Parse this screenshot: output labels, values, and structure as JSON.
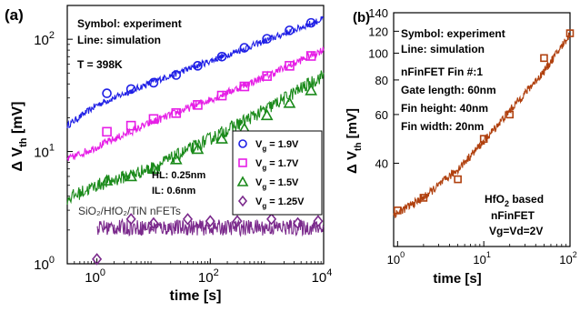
{
  "chart_data": [
    {
      "panel_label": "(a)",
      "type": "scatter",
      "xscale": "log",
      "yscale": "log",
      "xlim": [
        0.3,
        10000
      ],
      "ylim": [
        1,
        200
      ],
      "xlabel": "time [s]",
      "ylabel_main": "Δ V",
      "ylabel_sub": "th",
      "ylabel_unit": " [mV]",
      "xticks": [
        {
          "v": 1,
          "base": "10",
          "exp": "0"
        },
        {
          "v": 100,
          "base": "10",
          "exp": "2"
        },
        {
          "v": 10000,
          "base": "10",
          "exp": "4"
        }
      ],
      "yticks": [
        {
          "v": 1,
          "base": "10",
          "exp": "0"
        },
        {
          "v": 10,
          "base": "10",
          "exp": "1"
        },
        {
          "v": 100,
          "base": "10",
          "exp": "2"
        }
      ],
      "annotations": {
        "line1": "Symbol: experiment",
        "line2": "Line: simulation",
        "temp": "T = 398K",
        "hl": "HL: 0.25nm",
        "il": "IL: 0.6nm",
        "stack": "SiO₂/HfO₂/TiN nFETs"
      },
      "legend_position": "center-right",
      "series": [
        {
          "name_main": "V",
          "name_sub": "g",
          "name_rest": " = 1.9V",
          "color": "#1f1fe6",
          "marker": "circle",
          "points": [
            [
              1.5,
              33
            ],
            [
              4,
              36
            ],
            [
              10,
              41
            ],
            [
              25,
              48
            ],
            [
              60,
              58
            ],
            [
              160,
              70
            ],
            [
              400,
              84
            ],
            [
              1000,
              101
            ],
            [
              2500,
              120
            ],
            [
              6000,
              140
            ]
          ],
          "sim": [
            [
              0.3,
              17
            ],
            [
              1,
              26
            ],
            [
              10,
              42
            ],
            [
              100,
              64
            ],
            [
              1000,
              98
            ],
            [
              10000,
              152
            ]
          ],
          "noise": 0.03
        },
        {
          "name_main": "V",
          "name_sub": "g",
          "name_rest": " = 1.7V",
          "color": "#e61ee6",
          "marker": "square",
          "points": [
            [
              1.5,
              15
            ],
            [
              4,
              17
            ],
            [
              10,
              19.5
            ],
            [
              25,
              22
            ],
            [
              60,
              26
            ],
            [
              160,
              31.5
            ],
            [
              400,
              38
            ],
            [
              1000,
              47
            ],
            [
              2500,
              58
            ],
            [
              6000,
              71
            ]
          ],
          "sim": [
            [
              0.3,
              8.5
            ],
            [
              1,
              11
            ],
            [
              10,
              18.5
            ],
            [
              100,
              29
            ],
            [
              1000,
              47
            ],
            [
              10000,
              81
            ]
          ],
          "noise": 0.035
        },
        {
          "name_main": "V",
          "name_sub": "g",
          "name_rest": " = 1.5V",
          "color": "#1a8a1a",
          "marker": "triangle",
          "points": [
            [
              1.5,
              5.5
            ],
            [
              4,
              6
            ],
            [
              10,
              7
            ],
            [
              25,
              8.5
            ],
            [
              60,
              10.5
            ],
            [
              160,
              13
            ],
            [
              400,
              16
            ],
            [
              1000,
              21
            ],
            [
              2500,
              27
            ],
            [
              6000,
              35
            ]
          ],
          "sim": [
            [
              0.3,
              3.8
            ],
            [
              1,
              5
            ],
            [
              10,
              7.2
            ],
            [
              100,
              13
            ],
            [
              1000,
              24
            ],
            [
              10000,
              48
            ]
          ],
          "noise": 0.06
        },
        {
          "name_main": "V",
          "name_sub": "g",
          "name_rest": " = 1.25V",
          "color": "#7b2a8c",
          "marker": "diamond",
          "points": [
            [
              1,
              1.1
            ],
            [
              4,
              2.5
            ],
            [
              10,
              2.3
            ],
            [
              40,
              2.5
            ],
            [
              100,
              2.4
            ],
            [
              300,
              2.4
            ],
            [
              1200,
              2.5
            ],
            [
              3500,
              2.3
            ],
            [
              8000,
              2.4
            ]
          ],
          "sim": [
            [
              1,
              2.1
            ],
            [
              10000,
              2.1
            ]
          ],
          "noise": 0.07
        }
      ]
    },
    {
      "panel_label": "(b)",
      "type": "scatter",
      "xscale": "log",
      "yscale": "log",
      "xlim": [
        0.9,
        100
      ],
      "ylim": [
        20,
        140
      ],
      "xlabel": "time [s]",
      "ylabel_main": "Δ V",
      "ylabel_sub": "th",
      "ylabel_unit": " [mV]",
      "xticks": [
        {
          "v": 1,
          "base": "10",
          "exp": "0"
        },
        {
          "v": 10,
          "base": "10",
          "exp": "1"
        },
        {
          "v": 100,
          "base": "10",
          "exp": "2"
        }
      ],
      "yticks": [
        {
          "v": 40,
          "label": "40"
        },
        {
          "v": 60,
          "label": "60"
        },
        {
          "v": 80,
          "label": "80"
        },
        {
          "v": 100,
          "label": "100"
        },
        {
          "v": 120,
          "label": "120"
        },
        {
          "v": 140,
          "label": "140"
        }
      ],
      "annotations": {
        "line1": "Symbol: experiment",
        "line2": "Line: simulation",
        "fin": "nFinFET Fin #:1",
        "gate": "Gate length: 60nm",
        "height": "Fin height: 40nm",
        "width": "Fin width: 20nm",
        "hfo_main": "HfO",
        "hfo_sub": "2",
        "hfo_rest": " based",
        "device": "nFinFET",
        "bias": "Vg=Vd=2V"
      },
      "series": [
        {
          "color": "#b0400e",
          "marker": "square",
          "points": [
            [
              1,
              27
            ],
            [
              2,
              30
            ],
            [
              5,
              35
            ],
            [
              10,
              49
            ],
            [
              20,
              60
            ],
            [
              50,
              96
            ],
            [
              100,
              118
            ]
          ],
          "sim": [
            [
              0.9,
              26
            ],
            [
              1,
              26.5
            ],
            [
              2,
              30
            ],
            [
              5,
              38
            ],
            [
              10,
              48
            ],
            [
              20,
              62
            ],
            [
              50,
              86
            ],
            [
              100,
              117
            ]
          ],
          "noise": 0.015
        }
      ]
    }
  ]
}
